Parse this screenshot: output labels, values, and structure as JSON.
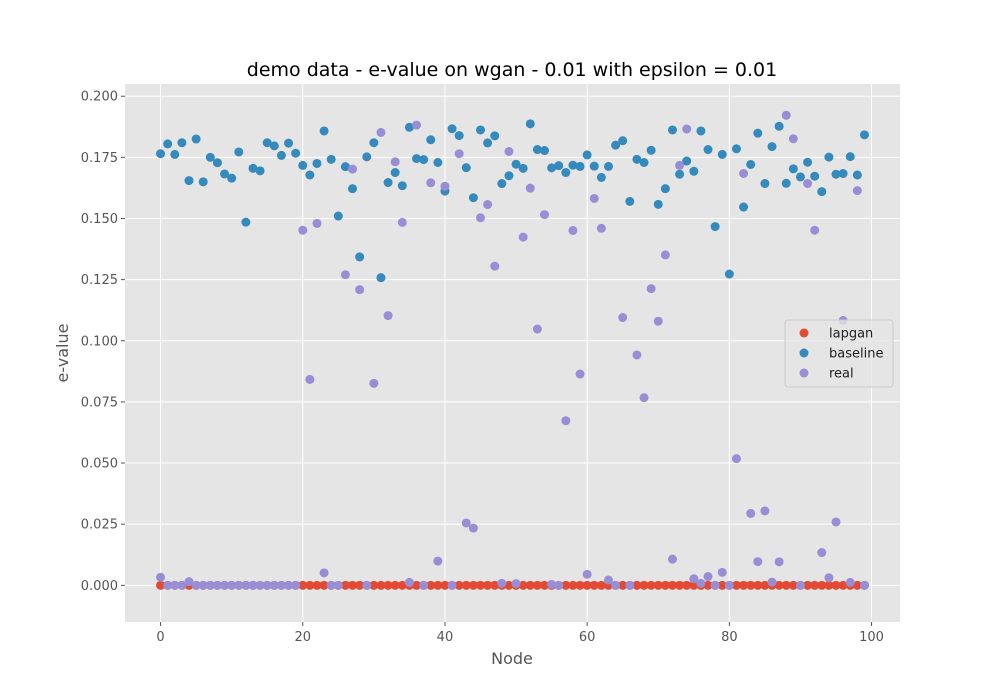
{
  "chart_data": {
    "type": "scatter",
    "title": "demo data - e-value on wgan - 0.01 with epsilon = 0.01",
    "xlabel": "Node",
    "ylabel": "e-value",
    "xlim": [
      -5,
      104
    ],
    "ylim": [
      -0.015,
      0.205
    ],
    "xticks": [
      0,
      20,
      40,
      60,
      80,
      100
    ],
    "yticks": [
      0.0,
      0.025,
      0.05,
      0.075,
      0.1,
      0.125,
      0.15,
      0.175,
      0.2
    ],
    "ytick_labels": [
      "0.000",
      "0.025",
      "0.050",
      "0.075",
      "0.100",
      "0.125",
      "0.150",
      "0.175",
      "0.200"
    ],
    "grid": true,
    "legend_position": "center-right",
    "series": [
      {
        "name": "lapgan",
        "color": "#E24A33",
        "x": [
          0,
          1,
          2,
          3,
          4,
          5,
          6,
          7,
          8,
          9,
          10,
          11,
          12,
          13,
          14,
          15,
          16,
          17,
          18,
          19,
          20,
          21,
          22,
          23,
          24,
          25,
          26,
          27,
          28,
          29,
          30,
          31,
          32,
          33,
          34,
          35,
          36,
          37,
          38,
          39,
          40,
          41,
          42,
          43,
          44,
          45,
          46,
          47,
          48,
          49,
          50,
          51,
          52,
          53,
          54,
          55,
          56,
          57,
          58,
          59,
          60,
          61,
          62,
          63,
          64,
          65,
          66,
          67,
          68,
          69,
          70,
          71,
          72,
          73,
          74,
          75,
          76,
          77,
          78,
          79,
          80,
          81,
          82,
          83,
          84,
          85,
          86,
          87,
          88,
          89,
          90,
          91,
          92,
          93,
          94,
          95,
          96,
          97,
          98,
          99
        ],
        "y": [
          0,
          0,
          0,
          0,
          0,
          0,
          0,
          0,
          0,
          0,
          0,
          0,
          0,
          0,
          0,
          0,
          0,
          0,
          0,
          0,
          0,
          0,
          0,
          0,
          0,
          0,
          0,
          0,
          0,
          0,
          0,
          0,
          0,
          0,
          0,
          0,
          0,
          0,
          0,
          0,
          0,
          0,
          0,
          0,
          0,
          0,
          0,
          0,
          0,
          0,
          0,
          0,
          0,
          0,
          0,
          0,
          0,
          0,
          0,
          0,
          0,
          0,
          0,
          0,
          0,
          0,
          0,
          0,
          0,
          0,
          0,
          0,
          0,
          0,
          0,
          0,
          0,
          0,
          0,
          0,
          0,
          0,
          0,
          0,
          0,
          0,
          0,
          0,
          0,
          0,
          0,
          0,
          0,
          0,
          0,
          0,
          0,
          0,
          0,
          0
        ]
      },
      {
        "name": "baseline",
        "color": "#348ABD",
        "x": [
          0,
          1,
          2,
          3,
          4,
          5,
          6,
          7,
          8,
          9,
          10,
          11,
          12,
          13,
          14,
          15,
          16,
          17,
          18,
          19,
          20,
          21,
          22,
          23,
          24,
          25,
          26,
          27,
          28,
          29,
          30,
          31,
          32,
          33,
          34,
          35,
          36,
          37,
          38,
          39,
          40,
          41,
          42,
          43,
          44,
          45,
          46,
          47,
          48,
          49,
          50,
          51,
          52,
          53,
          54,
          55,
          56,
          57,
          58,
          59,
          60,
          61,
          62,
          63,
          64,
          65,
          66,
          67,
          68,
          69,
          70,
          71,
          72,
          73,
          74,
          75,
          76,
          77,
          78,
          79,
          80,
          81,
          82,
          83,
          84,
          85,
          86,
          87,
          88,
          89,
          90,
          91,
          92,
          93,
          94,
          95,
          96,
          97,
          98,
          99
        ],
        "y": [
          0.1765,
          0.1805,
          0.1762,
          0.181,
          0.1655,
          0.1825,
          0.165,
          0.175,
          0.1728,
          0.1682,
          0.1665,
          0.1772,
          0.1485,
          0.1705,
          0.1695,
          0.181,
          0.1797,
          0.1758,
          0.1808,
          0.1767,
          0.1717,
          0.1678,
          0.1725,
          0.1858,
          0.1742,
          0.151,
          0.1712,
          0.1622,
          0.1343,
          0.1752,
          0.181,
          0.1258,
          0.1647,
          0.1688,
          0.1634,
          0.1873,
          0.1745,
          0.1741,
          0.1822,
          0.1729,
          0.1612,
          0.1867,
          0.1839,
          0.1708,
          0.1585,
          0.1862,
          0.1809,
          0.1838,
          0.1643,
          0.1675,
          0.1722,
          0.1705,
          0.1887,
          0.1782,
          0.1778,
          0.1707,
          0.1716,
          0.1688,
          0.1718,
          0.1713,
          0.176,
          0.1714,
          0.1668,
          0.1713,
          0.18,
          0.1818,
          0.157,
          0.1742,
          0.1729,
          0.1779,
          0.1558,
          0.1622,
          0.1862,
          0.1681,
          0.1735,
          0.1693,
          0.1858,
          0.1782,
          0.1467,
          0.1762,
          0.1273,
          0.1785,
          0.1547,
          0.1721,
          0.1849,
          0.1643,
          0.1794,
          0.1877,
          0.1644,
          0.1703,
          0.167,
          0.173,
          0.1673,
          0.161,
          0.1751,
          0.1681,
          0.1684,
          0.1753,
          0.1678,
          0.1842
        ]
      },
      {
        "name": "real",
        "color": "#988ED5",
        "x": [
          0,
          1,
          2,
          3,
          4,
          5,
          6,
          7,
          8,
          9,
          10,
          11,
          12,
          13,
          14,
          15,
          16,
          17,
          18,
          19,
          20,
          21,
          22,
          23,
          24,
          25,
          26,
          27,
          28,
          29,
          30,
          31,
          32,
          33,
          34,
          35,
          36,
          37,
          38,
          39,
          40,
          41,
          42,
          43,
          44,
          45,
          46,
          47,
          48,
          49,
          50,
          51,
          52,
          53,
          54,
          55,
          56,
          57,
          58,
          59,
          60,
          61,
          62,
          63,
          64,
          65,
          66,
          67,
          68,
          69,
          70,
          71,
          72,
          73,
          74,
          75,
          76,
          77,
          78,
          79,
          80,
          81,
          82,
          83,
          84,
          85,
          86,
          87,
          88,
          89,
          90,
          91,
          92,
          93,
          94,
          95,
          96,
          97,
          98,
          99
        ],
        "y": [
          0.0033,
          0,
          0,
          0,
          0.0015,
          0,
          0,
          0,
          0,
          0,
          0,
          0,
          0,
          0,
          0,
          0,
          0,
          0,
          0,
          0,
          0.1452,
          0.0842,
          0.148,
          0.0051,
          0,
          0,
          0.127,
          0.1702,
          0.1209,
          0,
          0.0826,
          0.1852,
          0.1103,
          0.1732,
          0.1484,
          0.0012,
          0.1882,
          0,
          0.1646,
          0.0099,
          0.1632,
          0,
          0.1765,
          0.0255,
          0.0234,
          0.1503,
          0.1557,
          0.1305,
          0.0008,
          0.1774,
          0.0007,
          0.1424,
          0.1624,
          0.1048,
          0.1516,
          0.0004,
          0,
          0.0673,
          0.1451,
          0.0864,
          0.0045,
          0.1582,
          0.146,
          0.0022,
          0,
          0.1095,
          0,
          0.0942,
          0.0767,
          0.1213,
          0.108,
          0.1351,
          0.0107,
          0.1717,
          0.1866,
          0.0027,
          0.0008,
          0.0036,
          0,
          0.0053,
          0,
          0.0518,
          0.1684,
          0.0294,
          0.0097,
          0.0304,
          0.0013,
          0.0096,
          0.1922,
          0.1826,
          0,
          0.1643,
          0.1452,
          0.0134,
          0.0031,
          0.0259,
          0.1083,
          0.0012,
          0.1614,
          0
        ]
      }
    ]
  }
}
